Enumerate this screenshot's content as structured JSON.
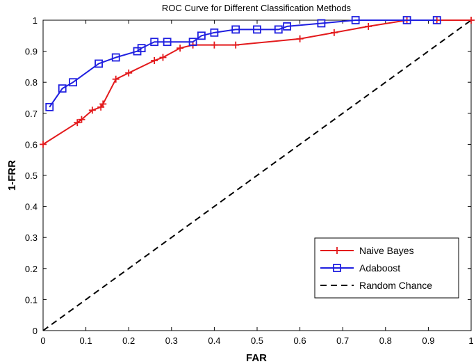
{
  "chart_data": {
    "type": "line",
    "title": "ROC Curve for Different Classification Methods",
    "xlabel": "FAR",
    "ylabel": "1-FRR",
    "xlim": [
      0,
      1
    ],
    "ylim": [
      0,
      1
    ],
    "x_ticks": [
      "0",
      "0.1",
      "0.2",
      "0.3",
      "0.4",
      "0.5",
      "0.6",
      "0.7",
      "0.8",
      "0.9",
      "1"
    ],
    "y_ticks": [
      "0",
      "0.1",
      "0.2",
      "0.3",
      "0.4",
      "0.5",
      "0.6",
      "0.7",
      "0.8",
      "0.9",
      "1"
    ],
    "grid": false,
    "legend_position": "bottom-right",
    "series": [
      {
        "name": "Naive Bayes",
        "color": "#e31a1c",
        "marker": "plus",
        "line_style": "solid",
        "x": [
          0.0,
          0.08,
          0.09,
          0.115,
          0.135,
          0.14,
          0.17,
          0.2,
          0.26,
          0.28,
          0.32,
          0.35,
          0.4,
          0.45,
          0.6,
          0.68,
          0.76,
          0.85,
          0.92,
          1.0
        ],
        "y": [
          0.6,
          0.67,
          0.68,
          0.71,
          0.72,
          0.73,
          0.81,
          0.83,
          0.87,
          0.88,
          0.91,
          0.92,
          0.92,
          0.92,
          0.94,
          0.96,
          0.98,
          1.0,
          1.0,
          1.0
        ]
      },
      {
        "name": "Adaboost",
        "color": "#1f1fe0",
        "marker": "square",
        "line_style": "solid",
        "x": [
          0.015,
          0.045,
          0.07,
          0.13,
          0.17,
          0.22,
          0.23,
          0.26,
          0.29,
          0.35,
          0.37,
          0.4,
          0.45,
          0.5,
          0.55,
          0.57,
          0.65,
          0.73,
          0.85,
          0.92
        ],
        "y": [
          0.72,
          0.78,
          0.8,
          0.86,
          0.88,
          0.9,
          0.91,
          0.93,
          0.93,
          0.93,
          0.95,
          0.96,
          0.97,
          0.97,
          0.97,
          0.98,
          0.99,
          1.0,
          1.0,
          1.0
        ]
      },
      {
        "name": "Random Chance",
        "color": "#000000",
        "marker": "none",
        "line_style": "dashed",
        "x": [
          0,
          1
        ],
        "y": [
          0,
          1
        ]
      }
    ]
  }
}
